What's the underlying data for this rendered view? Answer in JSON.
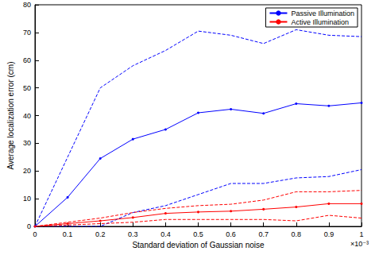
{
  "chart_data": {
    "type": "line",
    "x_label": "Standard deviation of Gaussian noise",
    "y_label": "Average localization error (cm)",
    "annotations": [
      "×10⁻³"
    ],
    "x": [
      0,
      0.1,
      0.2,
      0.3,
      0.4,
      0.5,
      0.6,
      0.7,
      0.8,
      0.9,
      1
    ],
    "series": [
      {
        "name": "Passive Illumination",
        "color": "#0000ff",
        "line_style": "solid",
        "marker": "circle",
        "values": [
          0,
          10.5,
          24.5,
          31.5,
          35,
          41,
          42.3,
          40.8,
          44.3,
          43.5,
          44.6
        ]
      },
      {
        "color": "#0000ff",
        "line_style": "dashed",
        "marker": "none",
        "values": [
          0,
          25,
          50,
          58,
          63.5,
          70.5,
          69,
          66,
          71,
          69,
          68.5
        ]
      },
      {
        "color": "#0000ff",
        "line_style": "dashed",
        "marker": "none",
        "values": [
          0,
          0,
          0,
          5,
          7.5,
          11.5,
          15.5,
          15.5,
          17.5,
          18,
          20.5
        ]
      },
      {
        "name": "Active Illumination",
        "color": "#ff0000",
        "line_style": "solid",
        "marker": "circle",
        "values": [
          0,
          1,
          2,
          3.2,
          4.7,
          5.2,
          5.5,
          6.2,
          7,
          8.2,
          8.2
        ]
      },
      {
        "color": "#ff0000",
        "line_style": "dashed",
        "marker": "none",
        "values": [
          0,
          1.5,
          3,
          5,
          6.5,
          7.5,
          8,
          9.5,
          12.5,
          12.5,
          13
        ]
      },
      {
        "color": "#ff0000",
        "line_style": "dashed",
        "marker": "none",
        "values": [
          0,
          0.5,
          1,
          1.5,
          2.5,
          2.5,
          2.5,
          2.5,
          2,
          4,
          3
        ]
      }
    ],
    "xlim": [
      0,
      1
    ],
    "xticks": [
      0,
      0.1,
      0.2,
      0.3,
      0.4,
      0.5,
      0.6,
      0.7,
      0.8,
      0.9,
      1
    ],
    "ylim": [
      0,
      80
    ],
    "yticks": [
      0,
      10,
      20,
      30,
      40,
      50,
      60,
      70,
      80
    ],
    "grid": false,
    "legend": "upper right"
  }
}
